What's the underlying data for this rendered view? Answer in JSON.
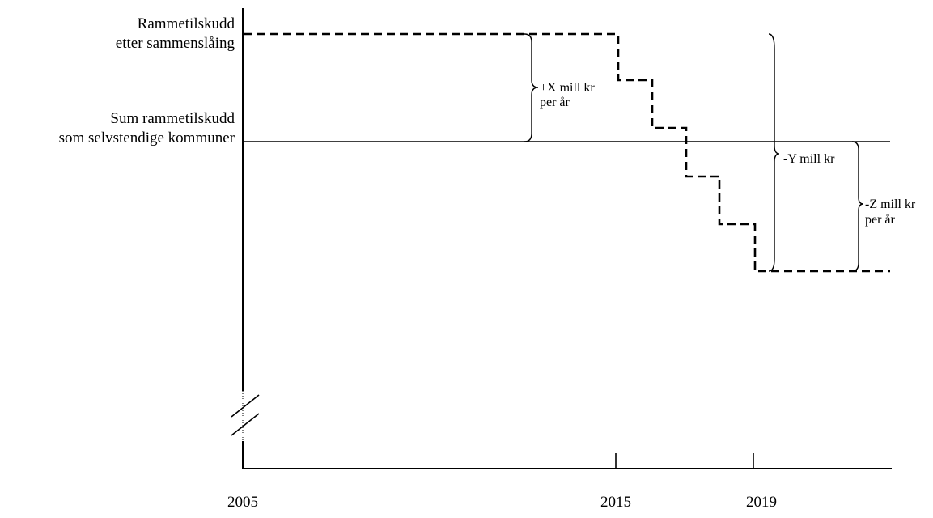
{
  "labels": {
    "top_level_line1": "Rammetilskudd",
    "top_level_line2": "etter sammenslåing",
    "mid_level_line1": "Sum rammetilskudd",
    "mid_level_line2": "som selvstendige kommuner",
    "brace_x_line1": "+X mill kr",
    "brace_x_line2": "per år",
    "brace_y": "-Y mill kr",
    "brace_z_line1": "-Z mill kr",
    "brace_z_line2": "per år"
  },
  "axis": {
    "years": [
      "2005",
      "2015",
      "2019"
    ]
  }
}
